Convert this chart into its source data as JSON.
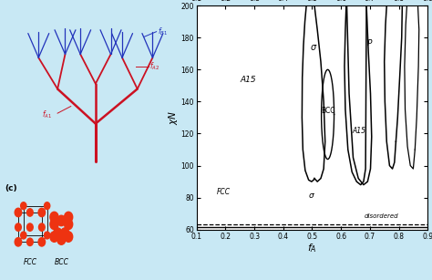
{
  "bg_color": "#c8e8f4",
  "panel_b_bg": "#ffffff",
  "trunk_color": "#cc1122",
  "branch_color": "#2233bb",
  "sphere_color": "#ee3311",
  "teal_color": "#22ccaa",
  "yellow_color": "#ddbb00",
  "green_color": "#44bb44",
  "magenta_color": "#cc22cc",
  "blue_sphere": "#2255ee",
  "xlim": [
    0.1,
    0.9
  ],
  "ylim": [
    60,
    200
  ],
  "xticks": [
    0.1,
    0.2,
    0.3,
    0.4,
    0.5,
    0.6,
    0.7,
    0.8,
    0.9
  ],
  "yticks": [
    60,
    80,
    100,
    120,
    140,
    160,
    180,
    200
  ]
}
